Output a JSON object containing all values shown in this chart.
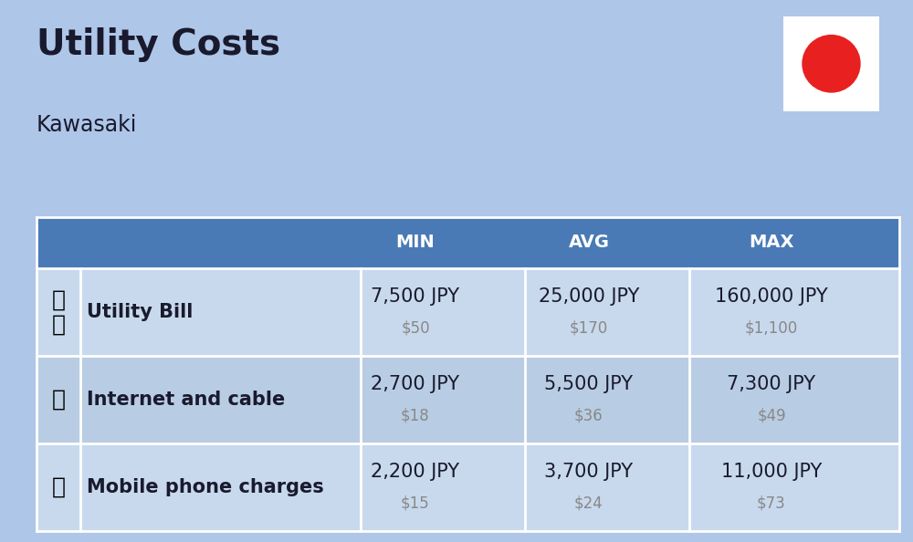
{
  "title": "Utility Costs",
  "subtitle": "Kawasaki",
  "background_color": "#aec6e8",
  "header_bg_color": "#4a7ab5",
  "header_text_color": "#ffffff",
  "row_bg_color_1": "#c8d9ed",
  "row_bg_color_2": "#b8cde3",
  "header_labels": [
    "MIN",
    "AVG",
    "MAX"
  ],
  "rows": [
    {
      "label": "Utility Bill",
      "min_jpy": "7,500 JPY",
      "min_usd": "$50",
      "avg_jpy": "25,000 JPY",
      "avg_usd": "$170",
      "max_jpy": "160,000 JPY",
      "max_usd": "$1,100"
    },
    {
      "label": "Internet and cable",
      "min_jpy": "2,700 JPY",
      "min_usd": "$18",
      "avg_jpy": "5,500 JPY",
      "avg_usd": "$36",
      "max_jpy": "7,300 JPY",
      "max_usd": "$49"
    },
    {
      "label": "Mobile phone charges",
      "min_jpy": "2,200 JPY",
      "min_usd": "$15",
      "avg_jpy": "3,700 JPY",
      "avg_usd": "$24",
      "max_jpy": "11,000 JPY",
      "max_usd": "$73"
    }
  ],
  "flag_circle_color": "#e82020",
  "jpy_fontsize": 15,
  "usd_fontsize": 12,
  "usd_color": "#888888",
  "label_fontsize": 15,
  "title_fontsize": 28,
  "subtitle_fontsize": 17,
  "header_fontsize": 14
}
